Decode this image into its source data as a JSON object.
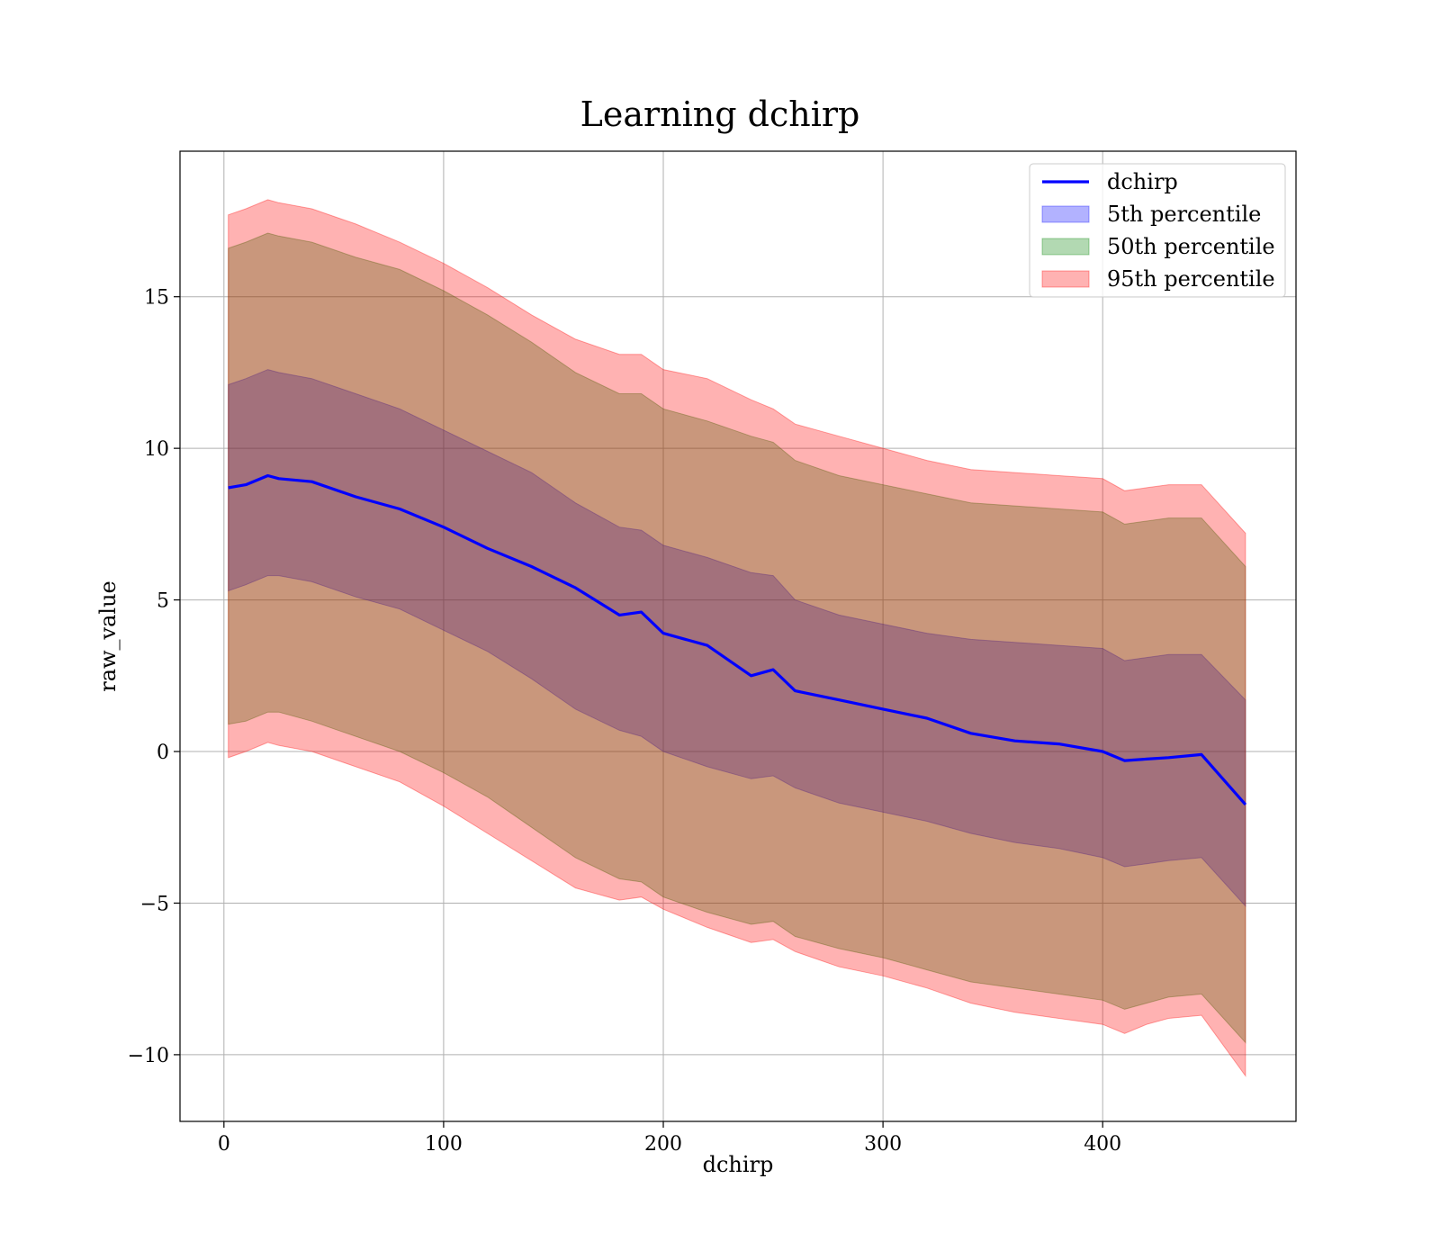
{
  "chart_data": {
    "type": "line",
    "title": "Learning dchirp",
    "xlabel": "dchirp",
    "ylabel": "raw_value",
    "xlim": [
      -20,
      488
    ],
    "ylim": [
      -12.2,
      19.8
    ],
    "xticks": [
      0,
      100,
      200,
      300,
      400
    ],
    "xtick_labels": [
      "0",
      "100",
      "200",
      "300",
      "400"
    ],
    "yticks": [
      -10,
      -5,
      0,
      5,
      10,
      15
    ],
    "ytick_labels": [
      "−10",
      "−5",
      "0",
      "5",
      "10",
      "15"
    ],
    "grid": true,
    "legend_position": "top-right",
    "x": [
      2,
      10,
      20,
      25,
      40,
      60,
      80,
      100,
      120,
      140,
      160,
      180,
      190,
      200,
      220,
      240,
      250,
      260,
      280,
      300,
      320,
      340,
      360,
      380,
      400,
      410,
      420,
      430,
      445,
      465
    ],
    "series": [
      {
        "name": "dchirp",
        "kind": "line",
        "color": "#0000ff",
        "values": [
          8.7,
          8.8,
          9.1,
          9.0,
          8.9,
          8.4,
          8.0,
          7.4,
          6.7,
          6.1,
          5.4,
          4.5,
          4.6,
          3.9,
          3.5,
          2.5,
          2.7,
          2.0,
          1.7,
          1.4,
          1.1,
          0.6,
          0.35,
          0.25,
          0.0,
          -0.3,
          -0.25,
          -0.2,
          -0.1,
          -1.75
        ]
      },
      {
        "name": "5th percentile",
        "kind": "band",
        "color": "#0000ff",
        "alpha": 0.3,
        "lower": [
          5.3,
          5.5,
          5.8,
          5.8,
          5.6,
          5.1,
          4.7,
          4.0,
          3.3,
          2.4,
          1.4,
          0.7,
          0.5,
          0.0,
          -0.5,
          -0.9,
          -0.8,
          -1.2,
          -1.7,
          -2.0,
          -2.3,
          -2.7,
          -3.0,
          -3.2,
          -3.5,
          -3.8,
          -3.7,
          -3.6,
          -3.5,
          -5.1
        ],
        "upper": [
          12.1,
          12.3,
          12.6,
          12.5,
          12.3,
          11.8,
          11.3,
          10.6,
          9.9,
          9.2,
          8.2,
          7.4,
          7.3,
          6.8,
          6.4,
          5.9,
          5.8,
          5.0,
          4.5,
          4.2,
          3.9,
          3.7,
          3.6,
          3.5,
          3.4,
          3.0,
          3.1,
          3.2,
          3.2,
          1.7
        ]
      },
      {
        "name": "50th percentile",
        "kind": "band",
        "color": "#008000",
        "alpha": 0.3,
        "lower": [
          0.9,
          1.0,
          1.3,
          1.3,
          1.0,
          0.5,
          0.0,
          -0.7,
          -1.5,
          -2.5,
          -3.5,
          -4.2,
          -4.3,
          -4.8,
          -5.3,
          -5.7,
          -5.6,
          -6.1,
          -6.5,
          -6.8,
          -7.2,
          -7.6,
          -7.8,
          -8.0,
          -8.2,
          -8.5,
          -8.3,
          -8.1,
          -8.0,
          -9.6
        ],
        "upper": [
          16.6,
          16.8,
          17.1,
          17.0,
          16.8,
          16.3,
          15.9,
          15.2,
          14.4,
          13.5,
          12.5,
          11.8,
          11.8,
          11.3,
          10.9,
          10.4,
          10.2,
          9.6,
          9.1,
          8.8,
          8.5,
          8.2,
          8.1,
          8.0,
          7.9,
          7.5,
          7.6,
          7.7,
          7.7,
          6.1
        ]
      },
      {
        "name": "95th percentile",
        "kind": "band",
        "color": "#ff0000",
        "alpha": 0.3,
        "lower": [
          -0.2,
          0.0,
          0.3,
          0.2,
          0.0,
          -0.5,
          -1.0,
          -1.8,
          -2.7,
          -3.6,
          -4.5,
          -4.9,
          -4.8,
          -5.2,
          -5.8,
          -6.3,
          -6.2,
          -6.6,
          -7.1,
          -7.4,
          -7.8,
          -8.3,
          -8.6,
          -8.8,
          -9.0,
          -9.3,
          -9.0,
          -8.8,
          -8.7,
          -10.7
        ],
        "upper": [
          17.7,
          17.9,
          18.2,
          18.1,
          17.9,
          17.4,
          16.8,
          16.1,
          15.3,
          14.4,
          13.6,
          13.1,
          13.1,
          12.6,
          12.3,
          11.6,
          11.3,
          10.8,
          10.4,
          10.0,
          9.6,
          9.3,
          9.2,
          9.1,
          9.0,
          8.6,
          8.7,
          8.8,
          8.8,
          7.2
        ]
      }
    ]
  }
}
